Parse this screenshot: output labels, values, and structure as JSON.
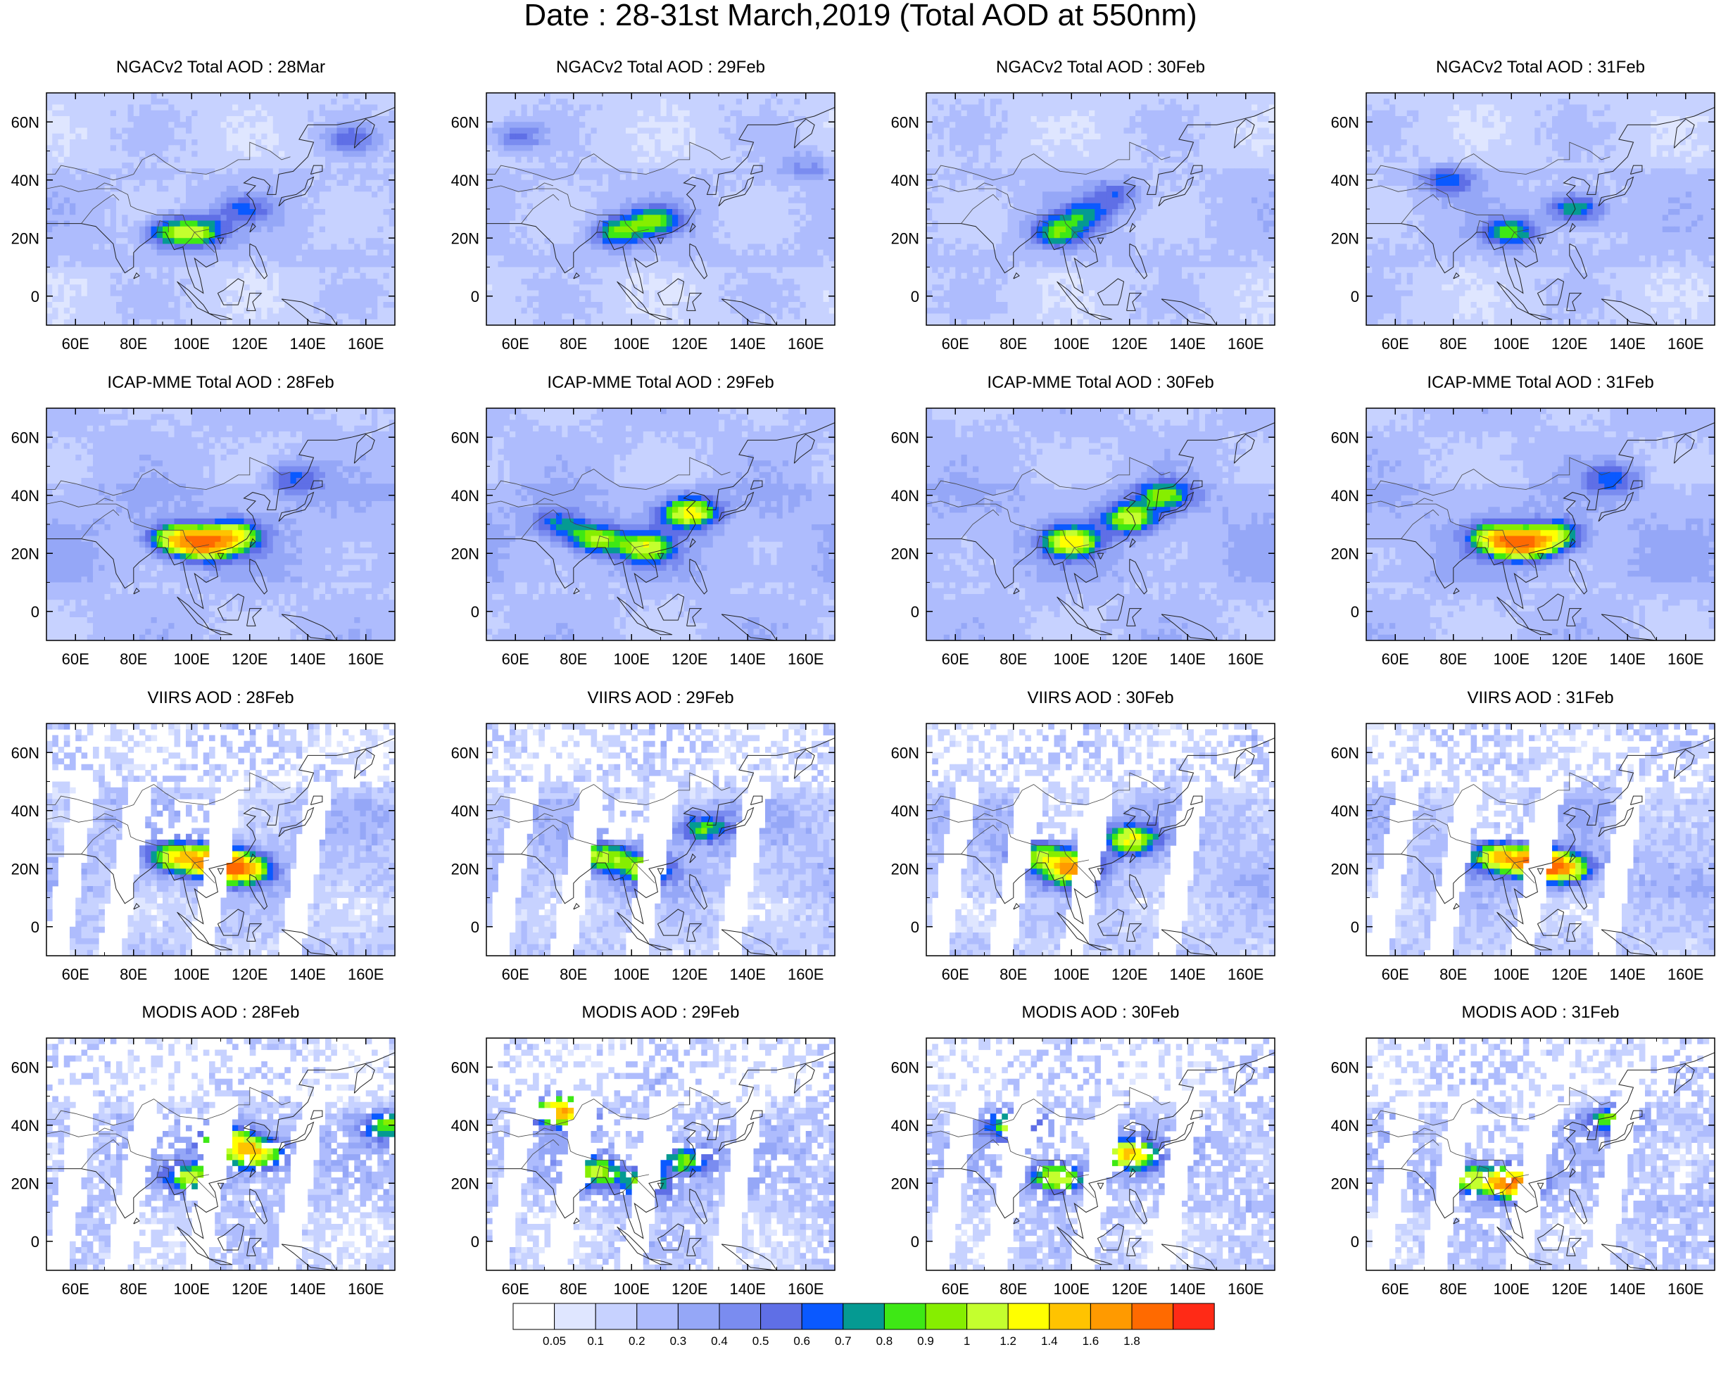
{
  "title": "Date : 28-31st March,2019 (Total AOD at 550nm)",
  "chart_data": {
    "type": "heatmap",
    "description_scale": "Total AOD at 550nm",
    "rows": [
      {
        "source": "NGACv2",
        "panels": [
          {
            "title": "NGACv2 Total AOD : 28Mar",
            "hotspots": [
              {
                "lon": 93,
                "lat": 22,
                "value": 0.8
              },
              {
                "lon": 103,
                "lat": 22,
                "value": 0.8
              },
              {
                "lon": 118,
                "lat": 30,
                "value": 0.5
              },
              {
                "lon": 155,
                "lat": 54,
                "value": 0.5
              }
            ]
          },
          {
            "title": "NGACv2 Total AOD : 29Feb",
            "hotspots": [
              {
                "lon": 95,
                "lat": 22,
                "value": 0.8
              },
              {
                "lon": 108,
                "lat": 26,
                "value": 0.8
              },
              {
                "lon": 60,
                "lat": 55,
                "value": 0.5
              },
              {
                "lon": 160,
                "lat": 45,
                "value": 0.4
              }
            ]
          },
          {
            "title": "NGACv2 Total AOD : 30Feb",
            "hotspots": [
              {
                "lon": 95,
                "lat": 22,
                "value": 0.8
              },
              {
                "lon": 105,
                "lat": 28,
                "value": 0.6
              },
              {
                "lon": 115,
                "lat": 35,
                "value": 0.5
              }
            ]
          },
          {
            "title": "NGACv2 Total AOD : 31Feb",
            "hotspots": [
              {
                "lon": 100,
                "lat": 22,
                "value": 0.8
              },
              {
                "lon": 122,
                "lat": 30,
                "value": 0.8
              },
              {
                "lon": 78,
                "lat": 40,
                "value": 0.6
              }
            ]
          }
        ]
      },
      {
        "source": "ICAP-MME",
        "panels": [
          {
            "title": "ICAP-MME Total AOD : 28Feb",
            "hotspots": [
              {
                "lon": 95,
                "lat": 25,
                "value": 1.2
              },
              {
                "lon": 105,
                "lat": 23,
                "value": 1.4
              },
              {
                "lon": 115,
                "lat": 26,
                "value": 1.0
              },
              {
                "lon": 135,
                "lat": 46,
                "value": 0.6
              }
            ]
          },
          {
            "title": "ICAP-MME Total AOD : 29Feb",
            "hotspots": [
              {
                "lon": 120,
                "lat": 34,
                "value": 1.2
              },
              {
                "lon": 105,
                "lat": 22,
                "value": 1.0
              },
              {
                "lon": 88,
                "lat": 25,
                "value": 0.9
              },
              {
                "lon": 75,
                "lat": 30,
                "value": 0.6
              }
            ]
          },
          {
            "title": "ICAP-MME Total AOD : 30Feb",
            "hotspots": [
              {
                "lon": 100,
                "lat": 24,
                "value": 1.2
              },
              {
                "lon": 120,
                "lat": 32,
                "value": 1.0
              },
              {
                "lon": 132,
                "lat": 40,
                "value": 0.8
              }
            ]
          },
          {
            "title": "ICAP-MME Total AOD : 31Feb",
            "hotspots": [
              {
                "lon": 95,
                "lat": 25,
                "value": 1.2
              },
              {
                "lon": 105,
                "lat": 23,
                "value": 1.4
              },
              {
                "lon": 115,
                "lat": 26,
                "value": 1.0
              },
              {
                "lon": 135,
                "lat": 46,
                "value": 0.6
              }
            ]
          }
        ]
      },
      {
        "source": "VIIRS",
        "panels": [
          {
            "title": "VIIRS AOD : 28Feb",
            "hotspots": [
              {
                "lon": 95,
                "lat": 24,
                "value": 1.2
              },
              {
                "lon": 108,
                "lat": 22,
                "value": 1.6
              },
              {
                "lon": 118,
                "lat": 20,
                "value": 1.4
              }
            ]
          },
          {
            "title": "VIIRS AOD : 29Feb",
            "hotspots": [
              {
                "lon": 90,
                "lat": 24,
                "value": 1.0
              },
              {
                "lon": 105,
                "lat": 20,
                "value": 1.0
              },
              {
                "lon": 125,
                "lat": 34,
                "value": 0.8
              }
            ]
          },
          {
            "title": "VIIRS AOD : 30Feb",
            "hotspots": [
              {
                "lon": 100,
                "lat": 20,
                "value": 1.6
              },
              {
                "lon": 120,
                "lat": 30,
                "value": 1.2
              },
              {
                "lon": 88,
                "lat": 25,
                "value": 0.9
              }
            ]
          },
          {
            "title": "VIIRS AOD : 31Feb",
            "hotspots": [
              {
                "lon": 95,
                "lat": 24,
                "value": 1.2
              },
              {
                "lon": 108,
                "lat": 22,
                "value": 1.6
              },
              {
                "lon": 118,
                "lat": 20,
                "value": 1.4
              }
            ]
          }
        ]
      },
      {
        "source": "MODIS",
        "panels": [
          {
            "title": "MODIS AOD : 28Feb",
            "hotspots": [
              {
                "lon": 112,
                "lat": 35,
                "value": 1.2
              },
              {
                "lon": 122,
                "lat": 30,
                "value": 1.4
              },
              {
                "lon": 100,
                "lat": 22,
                "value": 1.0
              },
              {
                "lon": 168,
                "lat": 40,
                "value": 0.9
              }
            ]
          },
          {
            "title": "MODIS AOD : 29Feb",
            "hotspots": [
              {
                "lon": 88,
                "lat": 24,
                "value": 1.0
              },
              {
                "lon": 105,
                "lat": 20,
                "value": 0.9
              },
              {
                "lon": 118,
                "lat": 28,
                "value": 0.9
              },
              {
                "lon": 76,
                "lat": 45,
                "value": 1.6
              }
            ]
          },
          {
            "title": "MODIS AOD : 30Feb",
            "hotspots": [
              {
                "lon": 95,
                "lat": 22,
                "value": 1.2
              },
              {
                "lon": 120,
                "lat": 30,
                "value": 1.4
              },
              {
                "lon": 80,
                "lat": 40,
                "value": 1.0
              }
            ]
          },
          {
            "title": "MODIS AOD : 31Feb",
            "hotspots": [
              {
                "lon": 100,
                "lat": 20,
                "value": 1.8
              },
              {
                "lon": 85,
                "lat": 22,
                "value": 1.0
              },
              {
                "lon": 135,
                "lat": 42,
                "value": 0.9
              }
            ]
          }
        ]
      }
    ],
    "x_ticks": [
      "60E",
      "80E",
      "100E",
      "120E",
      "140E",
      "160E"
    ],
    "x_tick_values": [
      60,
      80,
      100,
      120,
      140,
      160
    ],
    "y_ticks": [
      "60N",
      "40N",
      "20N",
      "0"
    ],
    "y_tick_values": [
      60,
      40,
      20,
      0
    ],
    "xlim": [
      50,
      170
    ],
    "ylim": [
      -10,
      70
    ],
    "colorbar": {
      "colors": [
        "#ffffff",
        "#dfe6ff",
        "#c7d2ff",
        "#aebcfd",
        "#95a7f7",
        "#7a8cf0",
        "#5f6fe6",
        "#0a59ff",
        "#059a92",
        "#3ee815",
        "#86ee00",
        "#c4ff2e",
        "#ffff00",
        "#ffc300",
        "#ff9a00",
        "#ff6a00",
        "#ff2a16"
      ],
      "labels": [
        "0.05",
        "0.1",
        "0.2",
        "0.3",
        "0.4",
        "0.5",
        "0.6",
        "0.7",
        "0.8",
        "0.9",
        "1",
        "1.2",
        "1.4",
        "1.6",
        "1.8"
      ],
      "thresholds": [
        0.05,
        0.1,
        0.2,
        0.3,
        0.4,
        0.5,
        0.6,
        0.7,
        0.8,
        0.9,
        1,
        1.2,
        1.4,
        1.6,
        1.8
      ]
    }
  }
}
